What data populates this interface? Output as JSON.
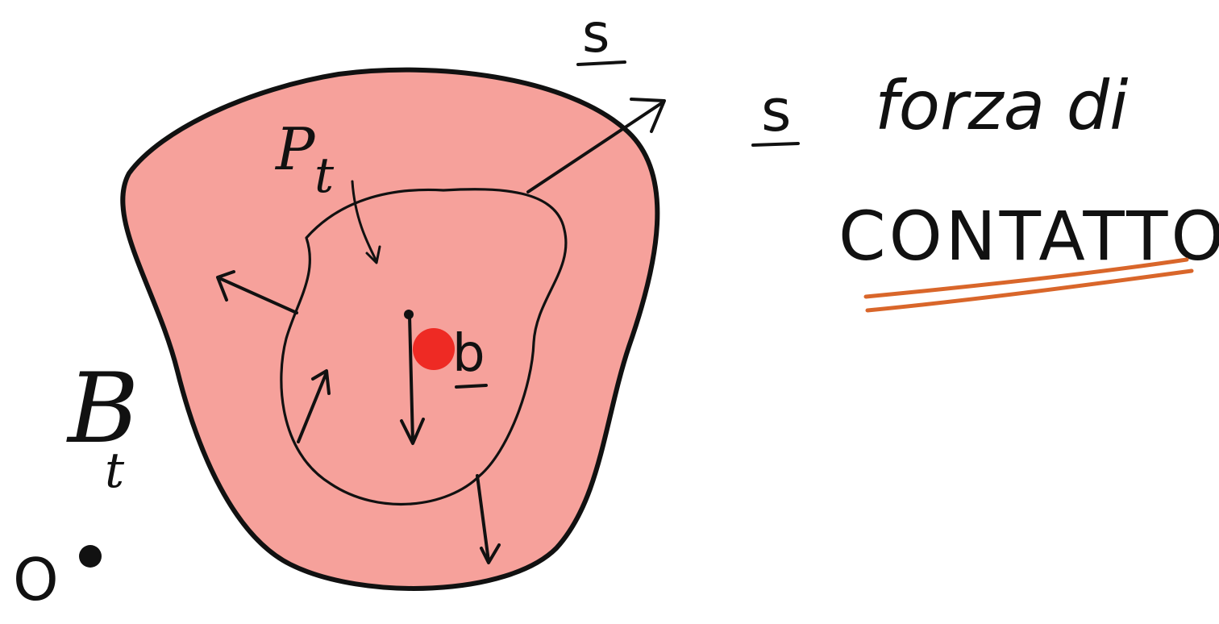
{
  "diagram": {
    "body_label": "B",
    "body_label_sub": "t",
    "part_label": "P",
    "part_label_sub": "t",
    "contact_force_symbol": "s",
    "body_force_symbol": "b",
    "origin_label": "O",
    "caption_line1_symbol": "s",
    "caption_line1_text": "forza di",
    "caption_line2": "CONTATTO"
  },
  "colors": {
    "body_fill": "#F6A19B",
    "ink": "#111111",
    "highlight_dot": "#EE2A24",
    "underline": "#D9662A"
  }
}
